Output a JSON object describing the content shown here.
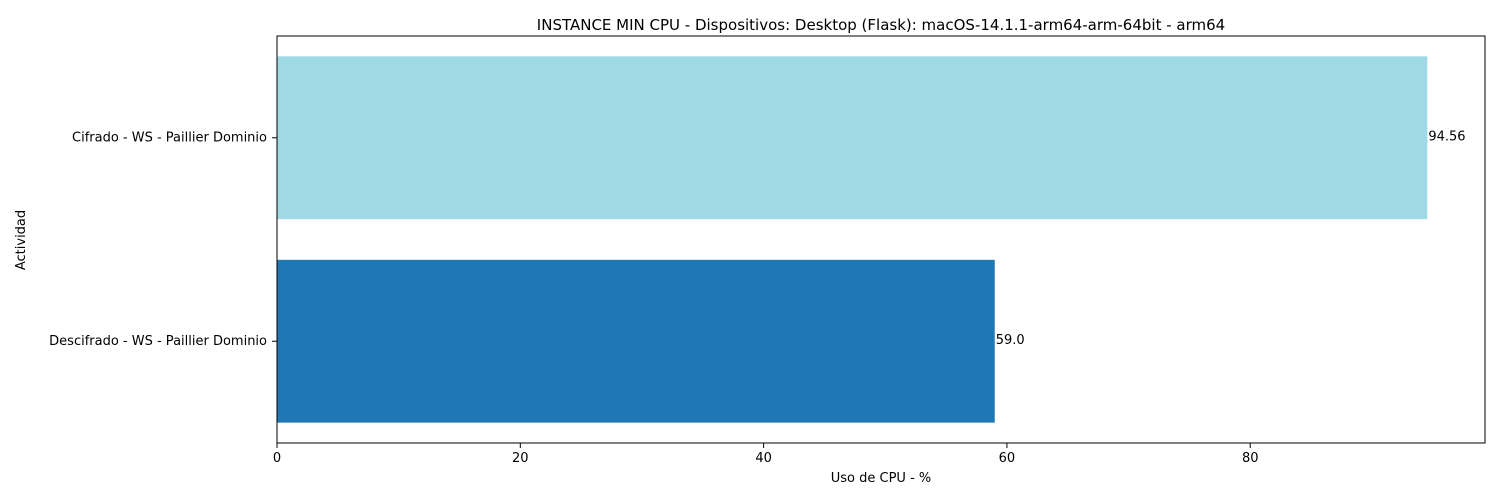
{
  "chart_data": {
    "type": "bar",
    "orientation": "horizontal",
    "title": "INSTANCE MIN CPU - Dispositivos: Desktop (Flask): macOS-14.1.1-arm64-arm-64bit - arm64",
    "xlabel": "Uso de CPU - %",
    "ylabel": "Actividad",
    "categories": [
      "Cifrado - WS - Paillier Dominio",
      "Descifrado - WS - Paillier Dominio"
    ],
    "values": [
      94.56,
      59.0
    ],
    "value_labels": [
      "94.56",
      "59.0"
    ],
    "bar_colors": [
      "#9fd9e3",
      "#1f77b4"
    ],
    "xlim": [
      0,
      99.3
    ],
    "xticks": [
      0,
      20,
      40,
      60,
      80
    ],
    "xtick_labels": [
      "0",
      "20",
      "40",
      "60",
      "80"
    ],
    "grid": false,
    "legend": "none"
  }
}
